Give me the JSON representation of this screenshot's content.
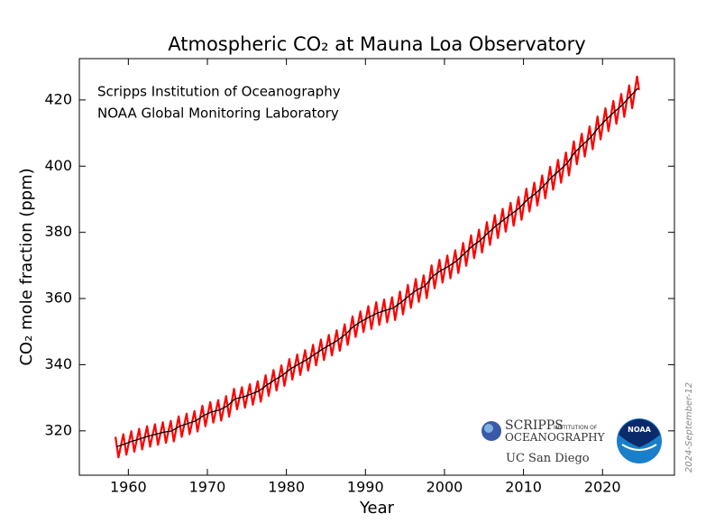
{
  "chart_data": {
    "type": "line",
    "title": "Atmospheric CO₂ at Mauna Loa Observatory",
    "xlabel": "Year",
    "ylabel": "CO₂ mole fraction (ppm)",
    "annotations": [
      "Scripps Institution of Oceanography",
      "NOAA Global Monitoring Laboratory"
    ],
    "date_stamp": "2024-September-12",
    "logos": {
      "scripps": "SCRIPPS",
      "scripps_sub": "INSTITUTION OF",
      "scripps_main": "OCEANOGRAPHY",
      "ucsd": "UC San Diego",
      "noaa": "NOAA"
    },
    "xlim": [
      1953.8,
      2029.1
    ],
    "ylim": [
      306.6,
      432.5
    ],
    "xticks": [
      1960,
      1970,
      1980,
      1990,
      2000,
      2010,
      2020
    ],
    "yticks": [
      320,
      340,
      360,
      380,
      400,
      420
    ],
    "series": [
      {
        "color": "#ff0000",
        "x": [
          1958.37,
          1958.75,
          1959.37,
          1959.75,
          1960.37,
          1960.75,
          1961.37,
          1961.75,
          1962.37,
          1962.75,
          1963.37,
          1963.75,
          1964.37,
          1964.75,
          1965.37,
          1965.75,
          1966.37,
          1966.75,
          1967.37,
          1967.75,
          1968.37,
          1968.75,
          1969.37,
          1969.75,
          1970.37,
          1970.75,
          1971.37,
          1971.75,
          1972.37,
          1972.75,
          1973.37,
          1973.75,
          1974.37,
          1974.75,
          1975.37,
          1975.75,
          1976.37,
          1976.75,
          1977.37,
          1977.75,
          1978.37,
          1978.75,
          1979.37,
          1979.75,
          1980.37,
          1980.75,
          1981.37,
          1981.75,
          1982.37,
          1982.75,
          1983.37,
          1983.75,
          1984.37,
          1984.75,
          1985.37,
          1985.75,
          1986.37,
          1986.75,
          1987.37,
          1987.75,
          1988.37,
          1988.75,
          1989.37,
          1989.75,
          1990.37,
          1990.75,
          1991.37,
          1991.75,
          1992.37,
          1992.75,
          1993.37,
          1993.75,
          1994.37,
          1994.75,
          1995.37,
          1995.75,
          1996.37,
          1996.75,
          1997.37,
          1997.75,
          1998.37,
          1998.75,
          1999.37,
          1999.75,
          2000.37,
          2000.75,
          2001.37,
          2001.75,
          2002.37,
          2002.75,
          2003.37,
          2003.75,
          2004.37,
          2004.75,
          2005.37,
          2005.75,
          2006.37,
          2006.75,
          2007.37,
          2007.75,
          2008.37,
          2008.75,
          2009.37,
          2009.75,
          2010.37,
          2010.75,
          2011.37,
          2011.75,
          2012.37,
          2012.75,
          2013.37,
          2013.75,
          2014.37,
          2014.75,
          2015.37,
          2015.75,
          2016.37,
          2016.75,
          2017.37,
          2017.75,
          2018.37,
          2018.75,
          2019.37,
          2019.75,
          2020.37,
          2020.75,
          2021.37,
          2021.75,
          2022.37,
          2022.75,
          2023.37,
          2023.75,
          2024.37,
          2024.62
        ],
        "values": [
          318.2,
          312.0,
          319.0,
          312.8,
          319.9,
          313.7,
          320.6,
          314.4,
          321.4,
          315.2,
          322.0,
          315.8,
          322.6,
          316.4,
          323.0,
          316.8,
          324.4,
          318.2,
          325.2,
          319.0,
          326.0,
          319.8,
          327.6,
          321.4,
          328.7,
          322.5,
          329.3,
          323.1,
          330.5,
          324.3,
          332.7,
          326.5,
          333.2,
          327.0,
          334.1,
          327.9,
          335.0,
          328.8,
          336.8,
          330.6,
          338.4,
          332.2,
          339.8,
          333.6,
          341.7,
          335.5,
          343.1,
          336.9,
          344.4,
          338.2,
          346.0,
          339.8,
          347.6,
          341.4,
          349.0,
          342.8,
          350.4,
          344.2,
          352.2,
          346.0,
          354.6,
          348.4,
          356.1,
          349.9,
          357.7,
          350.8,
          358.9,
          352.0,
          359.7,
          352.8,
          360.4,
          353.5,
          362.1,
          355.2,
          364.1,
          357.2,
          365.9,
          359.0,
          367.0,
          360.1,
          370.0,
          363.1,
          371.7,
          364.8,
          373.0,
          366.1,
          374.6,
          367.7,
          376.8,
          369.9,
          379.1,
          372.2,
          380.8,
          373.9,
          383.1,
          376.2,
          385.2,
          378.3,
          387.1,
          380.2,
          388.9,
          382.0,
          390.7,
          383.8,
          393.2,
          386.3,
          395.0,
          388.1,
          397.2,
          390.3,
          399.8,
          392.9,
          401.9,
          395.0,
          404.1,
          397.2,
          407.5,
          400.6,
          409.8,
          402.9,
          412.0,
          405.1,
          415.0,
          408.1,
          417.5,
          410.6,
          419.7,
          412.8,
          421.8,
          414.9,
          424.4,
          417.5,
          427.1,
          423.0
        ]
      },
      {
        "color": "#000000",
        "x": [
          1958.5,
          1959.5,
          1960.5,
          1961.5,
          1962.5,
          1963.5,
          1964.5,
          1965.5,
          1966.5,
          1967.5,
          1968.5,
          1969.5,
          1970.5,
          1971.5,
          1972.5,
          1973.5,
          1974.5,
          1975.5,
          1976.5,
          1977.5,
          1978.5,
          1979.5,
          1980.5,
          1981.5,
          1982.5,
          1983.5,
          1984.5,
          1985.5,
          1986.5,
          1987.5,
          1988.5,
          1989.5,
          1990.5,
          1991.5,
          1992.5,
          1993.5,
          1994.5,
          1995.5,
          1996.5,
          1997.5,
          1998.5,
          1999.5,
          2000.5,
          2001.5,
          2002.5,
          2003.5,
          2004.5,
          2005.5,
          2006.5,
          2007.5,
          2008.5,
          2009.5,
          2010.5,
          2011.5,
          2012.5,
          2013.5,
          2014.5,
          2015.5,
          2016.5,
          2017.5,
          2018.5,
          2019.5,
          2020.5,
          2021.5,
          2022.5,
          2023.5,
          2024.5
        ],
        "values": [
          315.2,
          316.0,
          316.9,
          317.6,
          318.4,
          319.0,
          319.6,
          320.0,
          321.4,
          322.2,
          323.0,
          324.6,
          325.7,
          326.3,
          327.5,
          329.7,
          330.2,
          331.1,
          332.0,
          333.8,
          335.4,
          336.8,
          338.7,
          340.1,
          341.4,
          343.0,
          344.6,
          346.0,
          347.4,
          349.2,
          351.6,
          353.1,
          354.4,
          355.6,
          356.4,
          357.1,
          358.8,
          360.8,
          362.6,
          363.7,
          366.7,
          368.4,
          369.7,
          371.3,
          373.5,
          375.8,
          377.5,
          379.8,
          381.9,
          383.8,
          385.6,
          387.4,
          389.9,
          391.7,
          393.9,
          396.5,
          398.6,
          400.8,
          404.2,
          406.5,
          408.7,
          411.7,
          414.2,
          416.4,
          418.5,
          421.1,
          423.6
        ]
      }
    ]
  }
}
